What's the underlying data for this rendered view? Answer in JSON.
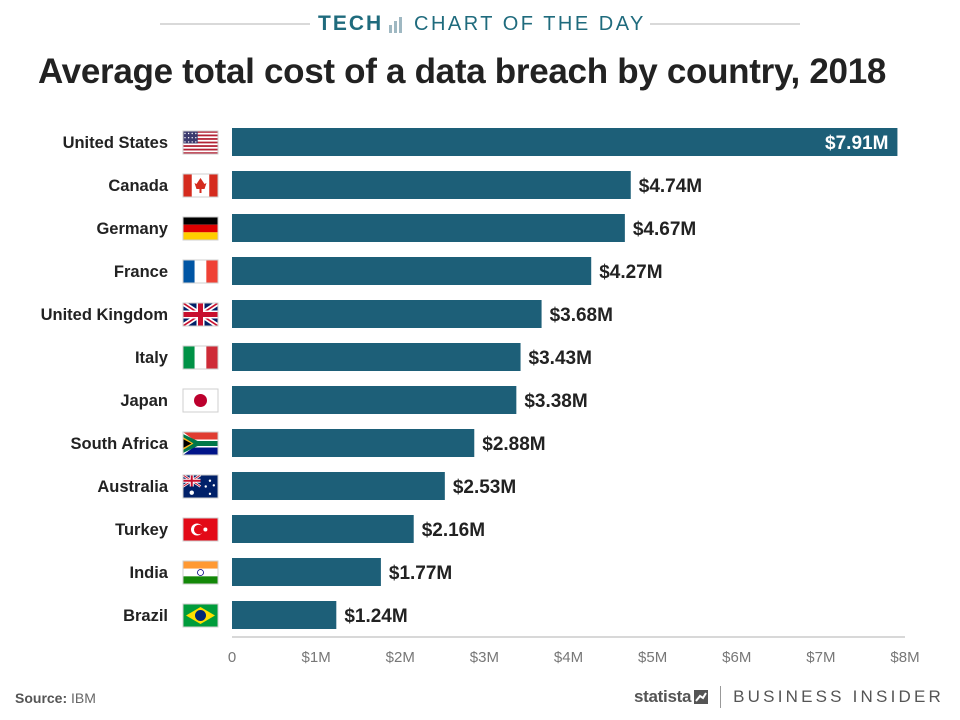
{
  "header": {
    "brand": "TECH",
    "label": "CHART OF THE DAY"
  },
  "chart_data": {
    "type": "bar",
    "orientation": "horizontal",
    "title": "Average total cost of a data breach by country, 2018",
    "categories": [
      "United States",
      "Canada",
      "Germany",
      "France",
      "United Kingdom",
      "Italy",
      "Japan",
      "South Africa",
      "Australia",
      "Turkey",
      "India",
      "Brazil"
    ],
    "values": [
      7.91,
      4.74,
      4.67,
      4.27,
      3.68,
      3.43,
      3.38,
      2.88,
      2.53,
      2.16,
      1.77,
      1.24
    ],
    "value_labels": [
      "$7.91M",
      "$4.74M",
      "$4.67M",
      "$4.27M",
      "$3.68M",
      "$3.43M",
      "$3.38M",
      "$2.88M",
      "$2.53M",
      "$2.16M",
      "$1.77M",
      "$1.24M"
    ],
    "xlim": [
      0,
      8
    ],
    "x_ticks": [
      0,
      1,
      2,
      3,
      4,
      5,
      6,
      7,
      8
    ],
    "x_tick_labels": [
      "0",
      "$1M",
      "$2M",
      "$3M",
      "$4M",
      "$5M",
      "$6M",
      "$7M",
      "$8M"
    ],
    "flags": [
      "us-flag-icon",
      "canada-flag-icon",
      "germany-flag-icon",
      "france-flag-icon",
      "uk-flag-icon",
      "italy-flag-icon",
      "japan-flag-icon",
      "south-africa-flag-icon",
      "australia-flag-icon",
      "turkey-flag-icon",
      "india-flag-icon",
      "brazil-flag-icon"
    ],
    "bar_color": "#1d5f78",
    "grid": false,
    "legend": "none"
  },
  "footer": {
    "source_label": "Source:",
    "source_value": "IBM",
    "statista": "statista",
    "publisher": "BUSINESS INSIDER"
  },
  "colors": {
    "accent": "#1f6b7d",
    "bar": "#1d5f78",
    "text": "#222222"
  }
}
